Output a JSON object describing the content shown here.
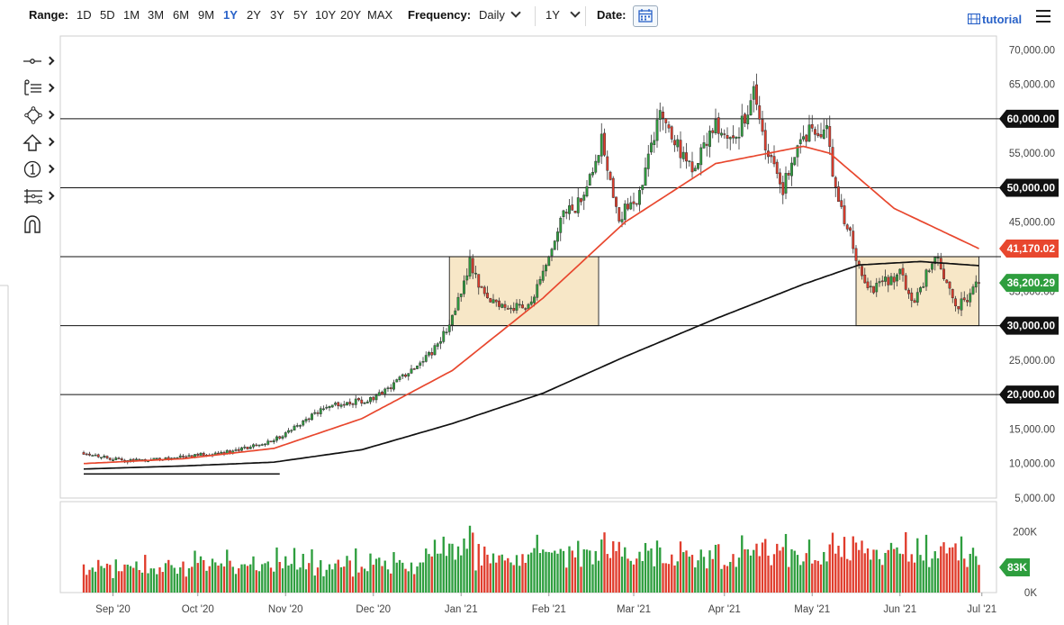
{
  "toolbar": {
    "range_label": "Range:",
    "ranges": [
      "1D",
      "5D",
      "1M",
      "3M",
      "6M",
      "9M",
      "1Y",
      "2Y",
      "3Y",
      "5Y",
      "10Y",
      "20Y",
      "MAX"
    ],
    "active_range": "1Y",
    "frequency_label": "Frequency:",
    "frequency_value": "Daily",
    "period_value": "1Y",
    "date_label": "Date:",
    "tutorial_label": "tutorial"
  },
  "tools": [
    "crosshair-tool-icon",
    "trend-line-tool-icon",
    "shapes-tool-icon",
    "arrow-tool-icon",
    "annotation-tool-icon",
    "fibonacci-tool-icon",
    "magnet-tool-icon"
  ],
  "colors": {
    "up": "#2e9e3e",
    "down": "#e03c2c",
    "ma50": "#e8472e",
    "ma200": "#111111",
    "accent": "#2962c8",
    "box_fill": "#f6e3bd",
    "box_stroke": "#333333"
  },
  "chart_data": {
    "type": "candlestick",
    "x_labels": [
      "Sep '20",
      "Oct '20",
      "Nov '20",
      "Dec '20",
      "Jan '21",
      "Feb '21",
      "Mar '21",
      "Apr '21",
      "May '21",
      "Jun '21",
      "Jul '21"
    ],
    "y_ticks": [
      "70,000.00",
      "65,000.00",
      "55,000.00",
      "45,000.00",
      "35,000.00",
      "25,000.00",
      "15,000.00",
      "10,000.00",
      "5,000.00"
    ],
    "ylim": [
      5000,
      72000
    ],
    "horizontal_levels": [
      {
        "value": 60000,
        "label": "60,000.00"
      },
      {
        "value": 50000,
        "label": "50,000.00"
      },
      {
        "value": 40000,
        "label": ""
      },
      {
        "value": 30000,
        "label": "30,000.00"
      },
      {
        "value": 20000,
        "label": "20,000.00"
      }
    ],
    "badges": [
      {
        "value": 41170.02,
        "label": "41,170.02",
        "color": "#e8472e"
      },
      {
        "value": 36200.29,
        "label": "36,200.29",
        "color": "#2e9e3e"
      }
    ],
    "consolidation_boxes": [
      {
        "x_start": "2020-12-31",
        "x_end": "2021-02-20",
        "y_low": 30000,
        "y_high": 40000
      },
      {
        "x_start": "2021-05-19",
        "x_end": "2021-06-30",
        "y_low": 30000,
        "y_high": 40000
      }
    ],
    "support_line": {
      "x_start": "2020-08-28",
      "x_end": "2020-11-03",
      "value": 8500
    },
    "close_anchors": [
      [
        "2020-08-28",
        11600
      ],
      [
        "2020-09-10",
        10400
      ],
      [
        "2020-09-25",
        10700
      ],
      [
        "2020-10-20",
        11900
      ],
      [
        "2020-11-03",
        13800
      ],
      [
        "2020-11-20",
        18600
      ],
      [
        "2020-12-05",
        19200
      ],
      [
        "2020-12-16",
        23000
      ],
      [
        "2020-12-27",
        27000
      ],
      [
        "2021-01-02",
        32000
      ],
      [
        "2021-01-07",
        39500
      ],
      [
        "2021-01-12",
        34000
      ],
      [
        "2021-01-22",
        32500
      ],
      [
        "2021-01-28",
        33500
      ],
      [
        "2021-02-02",
        38000
      ],
      [
        "2021-02-08",
        46000
      ],
      [
        "2021-02-13",
        47500
      ],
      [
        "2021-02-21",
        57000
      ],
      [
        "2021-02-27",
        46000
      ],
      [
        "2021-03-05",
        48000
      ],
      [
        "2021-03-13",
        61000
      ],
      [
        "2021-03-24",
        52000
      ],
      [
        "2021-03-31",
        58800
      ],
      [
        "2021-04-09",
        58000
      ],
      [
        "2021-04-14",
        63500
      ],
      [
        "2021-04-18",
        56000
      ],
      [
        "2021-04-24",
        50000
      ],
      [
        "2021-04-30",
        57800
      ],
      [
        "2021-05-09",
        58000
      ],
      [
        "2021-05-12",
        50000
      ],
      [
        "2021-05-19",
        40000
      ],
      [
        "2021-05-23",
        35000
      ],
      [
        "2021-06-03",
        37500
      ],
      [
        "2021-06-08",
        33500
      ],
      [
        "2021-06-15",
        40200
      ],
      [
        "2021-06-22",
        32500
      ],
      [
        "2021-06-27",
        34500
      ],
      [
        "2021-06-30",
        36200
      ]
    ],
    "ma50_anchors": [
      [
        "2020-08-28",
        10000
      ],
      [
        "2020-10-01",
        10700
      ],
      [
        "2020-11-01",
        12200
      ],
      [
        "2020-12-01",
        16500
      ],
      [
        "2021-01-01",
        23500
      ],
      [
        "2021-02-01",
        34000
      ],
      [
        "2021-03-01",
        45000
      ],
      [
        "2021-04-01",
        53500
      ],
      [
        "2021-05-01",
        56000
      ],
      [
        "2021-05-10",
        55000
      ],
      [
        "2021-06-01",
        47000
      ],
      [
        "2021-06-30",
        41170
      ]
    ],
    "ma200_anchors": [
      [
        "2020-08-28",
        9200
      ],
      [
        "2020-10-01",
        9650
      ],
      [
        "2020-11-01",
        10200
      ],
      [
        "2020-12-01",
        12000
      ],
      [
        "2021-01-01",
        15800
      ],
      [
        "2021-02-01",
        20200
      ],
      [
        "2021-03-01",
        25500
      ],
      [
        "2021-04-01",
        31000
      ],
      [
        "2021-05-01",
        36000
      ],
      [
        "2021-05-20",
        38800
      ],
      [
        "2021-06-10",
        39300
      ],
      [
        "2021-06-30",
        38700
      ]
    ],
    "volume": {
      "y_ticks": [
        "200K",
        "0K"
      ],
      "ylim": [
        0,
        300000
      ],
      "badge": {
        "value": 83000,
        "label": "83K"
      }
    }
  }
}
